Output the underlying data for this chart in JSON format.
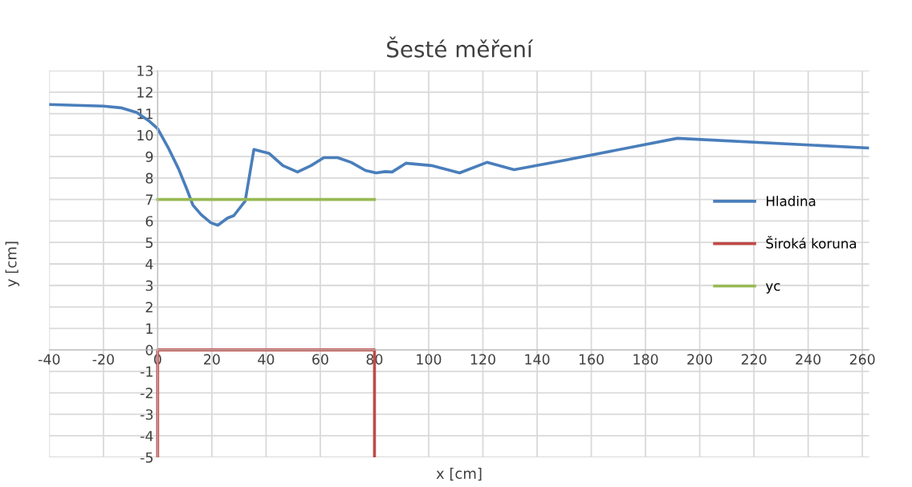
{
  "chart_data": {
    "type": "line",
    "title": "Šesté měření",
    "xlabel": "x [cm]",
    "ylabel": "y [cm]",
    "xlim": [
      -40,
      262.5
    ],
    "ylim": [
      -5,
      13
    ],
    "xticks": [
      -40,
      -20,
      0,
      20,
      40,
      60,
      80,
      100,
      120,
      140,
      160,
      180,
      200,
      220,
      240,
      260
    ],
    "yticks": [
      -5,
      -4,
      -3,
      -2,
      -1,
      0,
      1,
      2,
      3,
      4,
      5,
      6,
      7,
      8,
      9,
      10,
      11,
      12,
      13
    ],
    "grid": true,
    "legend": "right",
    "marker": "none",
    "line_style": "solid",
    "series": [
      {
        "name": "Hladina",
        "color": "#4a7ebb",
        "x": [
          -40,
          -20,
          -13.6,
          -7.7,
          -3.3,
          0,
          4.1,
          7.7,
          10.7,
          13,
          16,
          19.6,
          22.2,
          25.8,
          28.1,
          32.3,
          35.5,
          41.2,
          46.2,
          51.6,
          56.6,
          61.3,
          66.4,
          71.4,
          76.7,
          80.6,
          83.9,
          86.5,
          91.6,
          101,
          111.4,
          121.5,
          131.5,
          149,
          191.7,
          262
        ],
        "values": [
          11.42,
          11.35,
          11.27,
          11.05,
          10.67,
          10.3,
          9.36,
          8.43,
          7.5,
          6.74,
          6.3,
          5.92,
          5.8,
          6.14,
          6.25,
          6.93,
          9.33,
          9.14,
          8.58,
          8.28,
          8.58,
          8.95,
          8.95,
          8.73,
          8.35,
          8.24,
          8.3,
          8.28,
          8.69,
          8.58,
          8.24,
          8.73,
          8.39,
          8.8,
          9.85,
          9.4
        ]
      },
      {
        "name": "Široká koruna",
        "color": "#be4b48",
        "x": [
          0,
          0,
          80,
          80
        ],
        "values": [
          -5,
          0,
          0,
          -5
        ]
      },
      {
        "name": "yc",
        "color": "#98b954",
        "x": [
          0,
          80
        ],
        "values": [
          7,
          7
        ]
      }
    ]
  }
}
